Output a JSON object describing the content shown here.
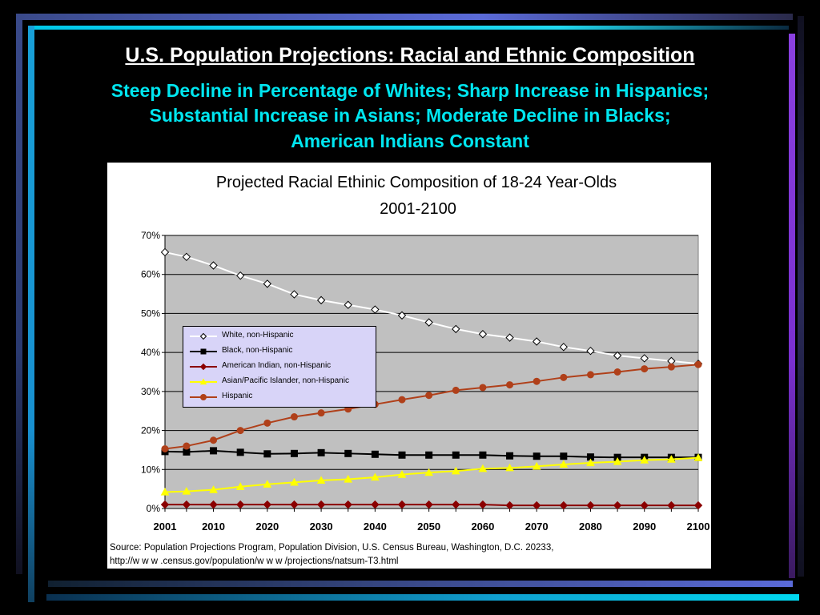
{
  "slide": {
    "title": "U.S. Population Projections: Racial and Ethnic Composition",
    "subtitle_lines": [
      "Steep Decline in Percentage of Whites; Sharp Increase in Hispanics;",
      "Substantial Increase in Asians; Moderate Decline in Blacks;",
      "American Indians Constant"
    ],
    "source": "Source:   Population Projections Program, Population Division, U.S. Census Bureau, Washington, D.C. 20233,",
    "source_url": "http://w w w .census.gov/population/w w w /projections/natsum-T3.html"
  },
  "colors": {
    "background": "#000000",
    "title": "#ffffff",
    "subtitle": "#00e6f0",
    "plot_area": "#c0c0c0",
    "legend_bg": "#d8d4f8"
  },
  "chart_data": {
    "type": "line",
    "title_lines": [
      "Projected Racial Ethinic Composition of 18-24 Year-Olds",
      "2001-2100"
    ],
    "x_tick_labels": [
      "2001",
      "2010",
      "2020",
      "2030",
      "2040",
      "2050",
      "2060",
      "2070",
      "2080",
      "2090",
      "2100"
    ],
    "x": [
      2001,
      2005,
      2010,
      2015,
      2020,
      2025,
      2030,
      2035,
      2040,
      2045,
      2050,
      2055,
      2060,
      2065,
      2070,
      2075,
      2080,
      2085,
      2090,
      2095,
      2100
    ],
    "y_ticks": [
      0,
      10,
      20,
      30,
      40,
      50,
      60,
      70
    ],
    "y_tick_labels": [
      "0%",
      "10%",
      "20%",
      "30%",
      "40%",
      "50%",
      "60%",
      "70%"
    ],
    "ylim": [
      0,
      70
    ],
    "grid": true,
    "legend_position": "center-left",
    "series": [
      {
        "name": "White, non-Hispanic",
        "color": "#ffffff",
        "marker": "diamond-open",
        "values": [
          65.7,
          64.5,
          62.3,
          59.7,
          57.6,
          54.9,
          53.4,
          52.2,
          51.0,
          49.5,
          47.7,
          46.0,
          44.7,
          43.8,
          42.8,
          41.4,
          40.4,
          39.2,
          38.5,
          37.8,
          37.1
        ]
      },
      {
        "name": "Black, non-Hispanic",
        "color": "#000000",
        "marker": "square",
        "values": [
          14.6,
          14.5,
          14.8,
          14.4,
          14.0,
          14.1,
          14.3,
          14.1,
          13.9,
          13.7,
          13.7,
          13.7,
          13.7,
          13.5,
          13.4,
          13.4,
          13.2,
          13.1,
          13.1,
          13.1,
          13.1
        ]
      },
      {
        "name": "American Indian, non-Hispanic",
        "color": "#8b0000",
        "marker": "diamond",
        "values": [
          1.0,
          1.0,
          1.0,
          1.0,
          1.0,
          1.0,
          1.0,
          1.0,
          1.0,
          1.0,
          1.0,
          1.0,
          1.0,
          0.8,
          0.8,
          0.8,
          0.8,
          0.8,
          0.8,
          0.8,
          0.8
        ]
      },
      {
        "name": "Asian/Pacific Islander, non-Hispanic",
        "color": "#ffff00",
        "marker": "triangle",
        "values": [
          4.2,
          4.4,
          4.8,
          5.6,
          6.2,
          6.7,
          7.2,
          7.5,
          8.0,
          8.7,
          9.2,
          9.6,
          10.2,
          10.4,
          10.8,
          11.3,
          11.7,
          12.0,
          12.4,
          12.6,
          13.0
        ]
      },
      {
        "name": "Hispanic",
        "color": "#b0401a",
        "marker": "circle",
        "values": [
          15.3,
          16.0,
          17.5,
          20.0,
          21.9,
          23.5,
          24.5,
          25.5,
          26.7,
          27.9,
          29.0,
          30.3,
          31.0,
          31.7,
          32.6,
          33.6,
          34.3,
          35.0,
          35.8,
          36.3,
          36.9
        ]
      }
    ]
  }
}
